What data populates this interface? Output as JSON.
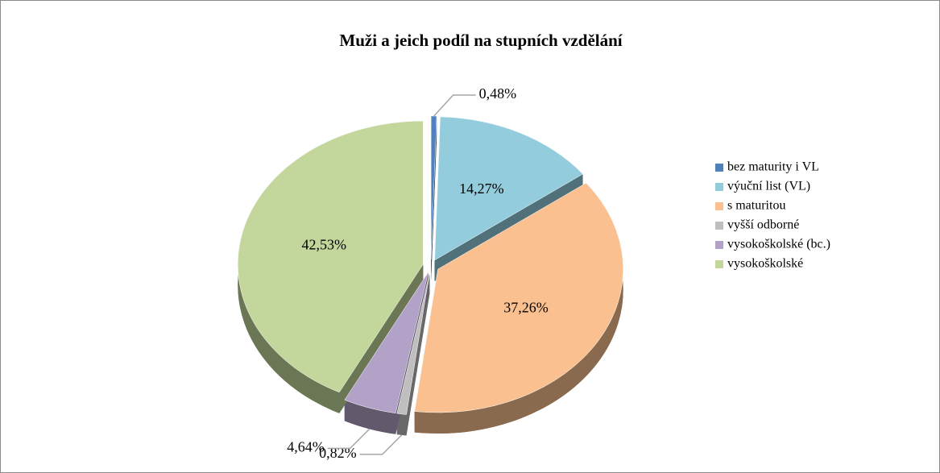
{
  "chart_data": {
    "type": "pie",
    "title": "Muži a jeich podíl na stupních vzdělání",
    "categories": [
      "bez maturity i VL",
      "výuční list (VL)",
      "s maturitou",
      "vyšší odborné",
      "vysokoškolské (bc.)",
      "vysokoškolské"
    ],
    "values": [
      0.48,
      14.27,
      37.26,
      0.82,
      4.64,
      42.53
    ],
    "value_labels": [
      "0,48%",
      "14,27%",
      "37,26%",
      "0,82%",
      "4,64%",
      "42,53%"
    ],
    "colors": [
      "#4f81bd",
      "#93cddd",
      "#fac090",
      "#bfbfbf",
      "#b3a2c7",
      "#c3d69b"
    ],
    "legend": "right"
  }
}
